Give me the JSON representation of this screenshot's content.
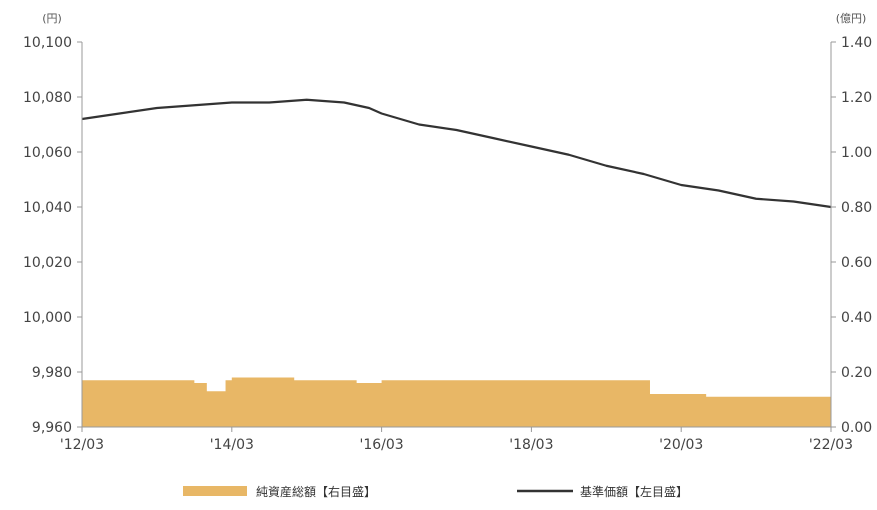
{
  "chart_data": {
    "type": "line",
    "x_ticks": [
      "'12/03",
      "'14/03",
      "'16/03",
      "'18/03",
      "'20/03",
      "'22/03"
    ],
    "y_left": {
      "unit": "(円)",
      "range": [
        9960,
        10100
      ],
      "ticks": [
        "10,100",
        "10,080",
        "10,060",
        "10,040",
        "10,020",
        "10,000",
        "9,980",
        "9,960"
      ]
    },
    "y_right": {
      "unit": "(億円)",
      "range": [
        0,
        1.4
      ],
      "ticks": [
        "1.40",
        "1.20",
        "1.00",
        "0.80",
        "0.60",
        "0.40",
        "0.20",
        "0.00"
      ]
    },
    "x_range": [
      "2012-03",
      "2022-03"
    ],
    "series": [
      {
        "name": "純資産総額【右目盛】",
        "type": "area",
        "axis": "right",
        "color": "#e8b766",
        "x": [
          "2012-03",
          "2013-09",
          "2013-10",
          "2013-11",
          "2013-12",
          "2014-02",
          "2014-03",
          "2014-07",
          "2014-08",
          "2015-01",
          "2015-10",
          "2015-11",
          "2016-03",
          "2017-03",
          "2019-09",
          "2019-10",
          "2020-06",
          "2020-07",
          "2022-03"
        ],
        "values": [
          0.17,
          0.16,
          0.16,
          0.13,
          0.13,
          0.17,
          0.18,
          0.18,
          0.18,
          0.17,
          0.17,
          0.16,
          0.17,
          0.17,
          0.17,
          0.12,
          0.12,
          0.11,
          0.11
        ]
      },
      {
        "name": "基準価額【左目盛】",
        "type": "line",
        "axis": "left",
        "color": "#333333",
        "x": [
          "2012-03",
          "2012-09",
          "2013-03",
          "2013-09",
          "2014-03",
          "2014-09",
          "2015-03",
          "2015-09",
          "2016-01",
          "2016-03",
          "2016-09",
          "2017-03",
          "2017-09",
          "2018-03",
          "2018-09",
          "2019-03",
          "2019-09",
          "2020-03",
          "2020-09",
          "2021-03",
          "2021-09",
          "2022-03"
        ],
        "values": [
          10072,
          10074,
          10076,
          10077,
          10078,
          10078,
          10079,
          10078,
          10076,
          10074,
          10070,
          10068,
          10065,
          10062,
          10059,
          10055,
          10052,
          10048,
          10046,
          10043,
          10042,
          10040
        ]
      }
    ],
    "grid": false,
    "legend_position": "bottom"
  }
}
